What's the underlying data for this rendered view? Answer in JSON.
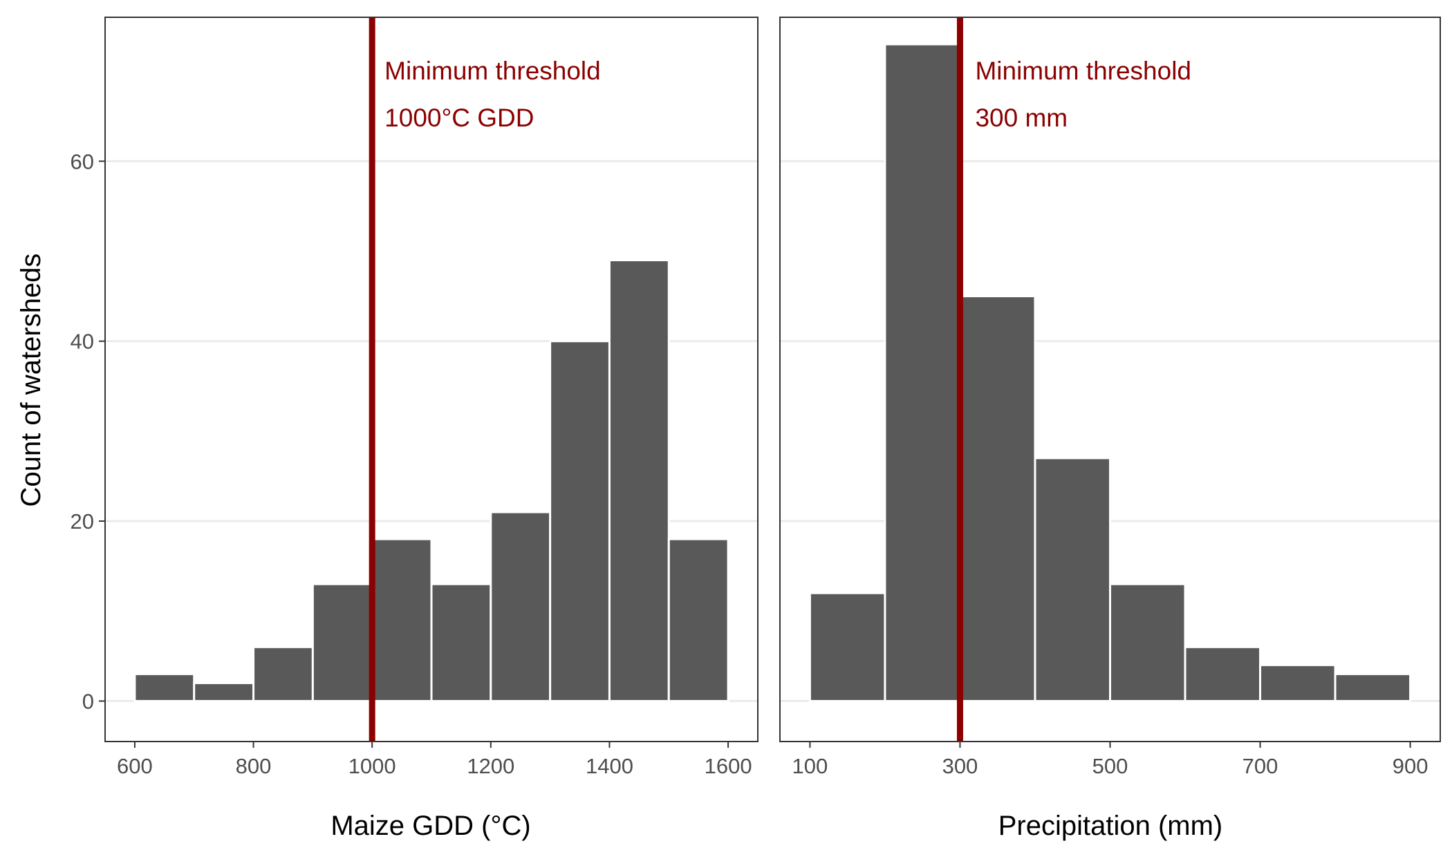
{
  "figure": {
    "ylabel": "Count of watersheds"
  },
  "colors": {
    "bar_fill": "#595959",
    "bar_edge": "#ffffff",
    "threshold": "#8b0000",
    "grid": "#ebebeb",
    "panel_border": "#333333",
    "tick_text": "#4d4d4d"
  },
  "chart_data": [
    {
      "type": "bar",
      "title": "",
      "xlabel": "Maize GDD (°C)",
      "ylabel": "Count of watersheds",
      "bin_width": 100,
      "bin_edges": [
        600,
        700,
        800,
        900,
        1000,
        1100,
        1200,
        1300,
        1400,
        1500,
        1600
      ],
      "values": [
        3,
        2,
        6,
        13,
        18,
        13,
        21,
        40,
        49,
        18
      ],
      "xlim": [
        550,
        1650
      ],
      "ylim": [
        -4.5,
        76
      ],
      "xticks": [
        600,
        800,
        1000,
        1200,
        1400,
        1600
      ],
      "yticks": [
        0,
        20,
        40,
        60
      ],
      "threshold": {
        "x": 1000,
        "label_line1": "Minimum threshold",
        "label_line2": "1000°C GDD"
      },
      "grid": "horizontal major"
    },
    {
      "type": "bar",
      "title": "",
      "xlabel": "Precipitation (mm)",
      "ylabel": "Count of watersheds",
      "bin_width": 100,
      "bin_edges": [
        100,
        200,
        300,
        400,
        500,
        600,
        700,
        800,
        900
      ],
      "values": [
        12,
        73,
        45,
        27,
        13,
        6,
        4,
        3
      ],
      "xlim": [
        60,
        940
      ],
      "ylim": [
        -4.5,
        76
      ],
      "xticks": [
        100,
        300,
        500,
        700,
        900
      ],
      "yticks": [
        0,
        20,
        40,
        60
      ],
      "threshold": {
        "x": 300,
        "label_line1": "Minimum threshold",
        "label_line2": "300 mm"
      },
      "grid": "horizontal major"
    }
  ]
}
